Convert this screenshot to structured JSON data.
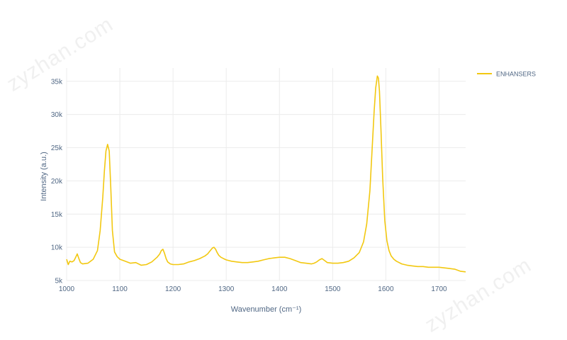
{
  "watermark": "zyzhan.com",
  "chart_data": {
    "type": "line",
    "title": "",
    "xlabel": "Wavenumber (cm⁻¹)",
    "ylabel": "Intensity (a.u.)",
    "xlim": [
      1000,
      1750
    ],
    "ylim": [
      5000,
      37000
    ],
    "xticks": [
      1000,
      1100,
      1200,
      1300,
      1400,
      1500,
      1600,
      1700
    ],
    "xtick_labels": [
      "1000",
      "1100",
      "1200",
      "1300",
      "1400",
      "1500",
      "1600",
      "1700"
    ],
    "yticks": [
      5000,
      10000,
      15000,
      20000,
      25000,
      30000,
      35000
    ],
    "ytick_labels": [
      "5k",
      "10k",
      "15k",
      "20k",
      "25k",
      "30k",
      "35k"
    ],
    "grid": true,
    "legend_position": "top-right",
    "series": [
      {
        "name": "ENHANSERS",
        "color": "#f2c811",
        "x": [
          1000,
          1003,
          1006,
          1010,
          1014,
          1017,
          1020,
          1023,
          1026,
          1030,
          1040,
          1050,
          1058,
          1063,
          1068,
          1071,
          1074,
          1077,
          1080,
          1083,
          1086,
          1090,
          1095,
          1100,
          1110,
          1120,
          1130,
          1140,
          1150,
          1160,
          1170,
          1175,
          1178,
          1181,
          1184,
          1187,
          1190,
          1195,
          1200,
          1210,
          1220,
          1230,
          1240,
          1250,
          1260,
          1265,
          1270,
          1274,
          1277,
          1280,
          1283,
          1286,
          1290,
          1295,
          1300,
          1310,
          1320,
          1330,
          1340,
          1350,
          1360,
          1370,
          1380,
          1390,
          1400,
          1410,
          1420,
          1430,
          1440,
          1450,
          1460,
          1465,
          1470,
          1475,
          1480,
          1485,
          1490,
          1500,
          1510,
          1520,
          1530,
          1540,
          1550,
          1558,
          1564,
          1570,
          1574,
          1578,
          1581,
          1584,
          1586,
          1588,
          1591,
          1594,
          1598,
          1602,
          1606,
          1610,
          1615,
          1620,
          1630,
          1640,
          1650,
          1660,
          1670,
          1680,
          1690,
          1700,
          1710,
          1720,
          1730,
          1740,
          1750
        ],
        "y": [
          8200,
          7400,
          7900,
          7800,
          8000,
          8500,
          9000,
          8300,
          7700,
          7500,
          7600,
          8200,
          9500,
          12500,
          17500,
          21500,
          24500,
          25500,
          24500,
          19000,
          12500,
          9300,
          8600,
          8200,
          7900,
          7600,
          7700,
          7300,
          7400,
          7800,
          8500,
          9000,
          9500,
          9700,
          9100,
          8300,
          7800,
          7500,
          7400,
          7400,
          7500,
          7800,
          8000,
          8300,
          8700,
          9000,
          9500,
          9900,
          10000,
          9700,
          9200,
          8800,
          8500,
          8300,
          8100,
          7900,
          7800,
          7700,
          7700,
          7800,
          7900,
          8100,
          8300,
          8400,
          8500,
          8500,
          8300,
          8000,
          7700,
          7600,
          7500,
          7600,
          7800,
          8100,
          8300,
          8000,
          7700,
          7600,
          7600,
          7700,
          7900,
          8400,
          9200,
          10800,
          13500,
          18500,
          24500,
          30500,
          34000,
          35800,
          35500,
          33500,
          27500,
          20500,
          14000,
          11000,
          9500,
          8700,
          8200,
          7900,
          7500,
          7300,
          7200,
          7100,
          7100,
          7000,
          7000,
          7000,
          6900,
          6800,
          6700,
          6400,
          6300
        ]
      }
    ]
  }
}
